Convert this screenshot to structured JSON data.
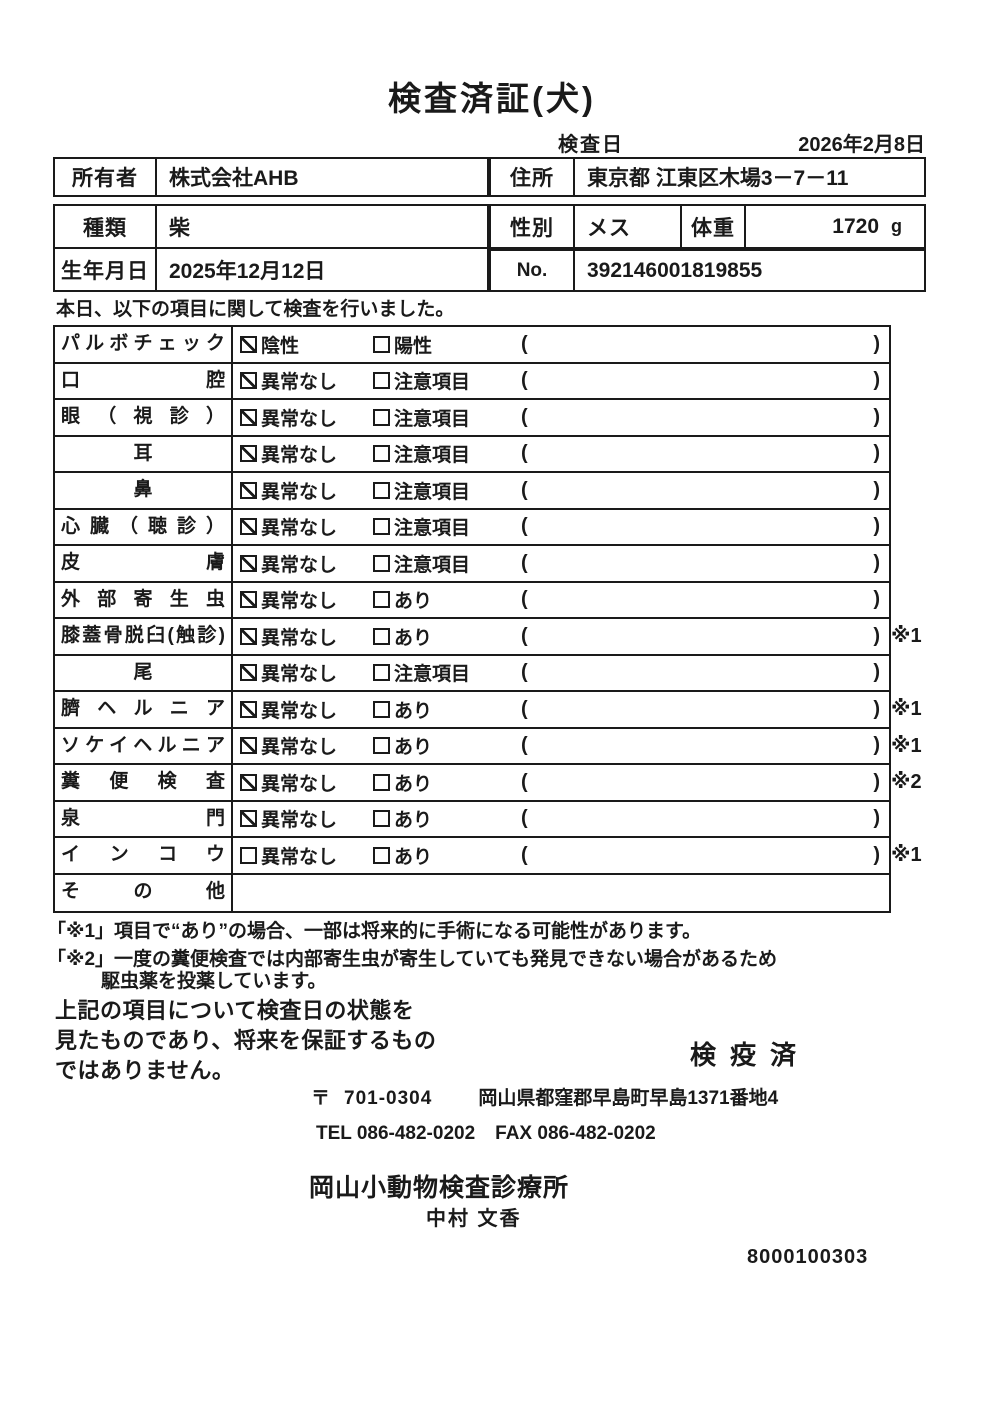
{
  "title": "検査済証(犬)",
  "inspection_date": {
    "label": "検査日",
    "value": "2026年2月8日"
  },
  "owner": {
    "label": "所有者",
    "value": "株式会社AHB"
  },
  "address": {
    "label": "住所",
    "value": "東京都 江東区木場3－7－11"
  },
  "breed": {
    "label": "種類",
    "value": "柴"
  },
  "sex": {
    "label": "性別",
    "value": "メス"
  },
  "weight": {
    "label": "体重",
    "value": "1720",
    "unit": "g"
  },
  "birthdate": {
    "label": "生年月日",
    "value": "2025年12月12日"
  },
  "number": {
    "label": "No.",
    "value": "392146001819855"
  },
  "intro": "本日、以下の項目に関して検査を行いました。",
  "checklist": {
    "rows": [
      {
        "label": "パルボチェック",
        "align": "justify",
        "option1": "陰性",
        "checked1": true,
        "option2": "陽性",
        "checked2": false,
        "note": "",
        "empty": false
      },
      {
        "label": "口腔",
        "align": "justify",
        "option1": "異常なし",
        "checked1": true,
        "option2": "注意項目",
        "checked2": false,
        "note": "",
        "empty": false
      },
      {
        "label": "眼（視診）",
        "align": "justify",
        "option1": "異常なし",
        "checked1": true,
        "option2": "注意項目",
        "checked2": false,
        "note": "",
        "empty": false
      },
      {
        "label": "耳",
        "align": "center",
        "option1": "異常なし",
        "checked1": true,
        "option2": "注意項目",
        "checked2": false,
        "note": "",
        "empty": false
      },
      {
        "label": "鼻",
        "align": "center",
        "option1": "異常なし",
        "checked1": true,
        "option2": "注意項目",
        "checked2": false,
        "note": "",
        "empty": false
      },
      {
        "label": "心臓（聴診）",
        "align": "justify",
        "option1": "異常なし",
        "checked1": true,
        "option2": "注意項目",
        "checked2": false,
        "note": "",
        "empty": false
      },
      {
        "label": "皮膚",
        "align": "justify",
        "option1": "異常なし",
        "checked1": true,
        "option2": "注意項目",
        "checked2": false,
        "note": "",
        "empty": false
      },
      {
        "label": "外部寄生虫",
        "align": "justify",
        "option1": "異常なし",
        "checked1": true,
        "option2": "あり",
        "checked2": false,
        "note": "",
        "empty": false
      },
      {
        "label": "膝蓋骨脱臼(触診)",
        "align": "justify",
        "option1": "異常なし",
        "checked1": true,
        "option2": "あり",
        "checked2": false,
        "note": "※1",
        "empty": false
      },
      {
        "label": "尾",
        "align": "center",
        "option1": "異常なし",
        "checked1": true,
        "option2": "注意項目",
        "checked2": false,
        "note": "",
        "empty": false
      },
      {
        "label": "臍ヘルニア",
        "align": "justify",
        "option1": "異常なし",
        "checked1": true,
        "option2": "あり",
        "checked2": false,
        "note": "※1",
        "empty": false
      },
      {
        "label": "ソケイヘルニア",
        "align": "justify",
        "option1": "異常なし",
        "checked1": true,
        "option2": "あり",
        "checked2": false,
        "note": "※1",
        "empty": false
      },
      {
        "label": "糞便検査",
        "align": "justify",
        "option1": "異常なし",
        "checked1": true,
        "option2": "あり",
        "checked2": false,
        "note": "※2",
        "empty": false
      },
      {
        "label": "泉門",
        "align": "justify",
        "option1": "異常なし",
        "checked1": true,
        "option2": "あり",
        "checked2": false,
        "note": "",
        "empty": false
      },
      {
        "label": "インコウ",
        "align": "justify",
        "option1": "異常なし",
        "checked1": false,
        "option2": "あり",
        "checked2": false,
        "note": "※1",
        "empty": false
      },
      {
        "label": "その他",
        "align": "justify",
        "option1": "",
        "checked1": false,
        "option2": "",
        "checked2": false,
        "note": "",
        "empty": true
      }
    ],
    "paren_open": "(",
    "paren_close": ")"
  },
  "footnotes": {
    "line1": "「※1」項目で“あり”の場合、一部は将来的に手術になる可能性があります。",
    "line2": "「※2」一度の糞便検査では内部寄生虫が寄生していても発見できない場合があるため",
    "line3": "駆虫薬を投薬しています。"
  },
  "statement": {
    "line1": "上記の項目について検査日の状態を",
    "line2": "見たものであり、将来を保証するもの",
    "line3": "ではありません。"
  },
  "stamp": "検疫済",
  "clinic": {
    "postal_mark": "〒",
    "postal_code": "701-0304",
    "address": "岡山県都窪郡早島町早島1371番地4",
    "tel": "TEL 086-482-0202",
    "fax": "FAX 086-482-0202",
    "name": "岡山小動物検査診療所",
    "veterinarian": "中村 文香",
    "code": "8000100303"
  }
}
